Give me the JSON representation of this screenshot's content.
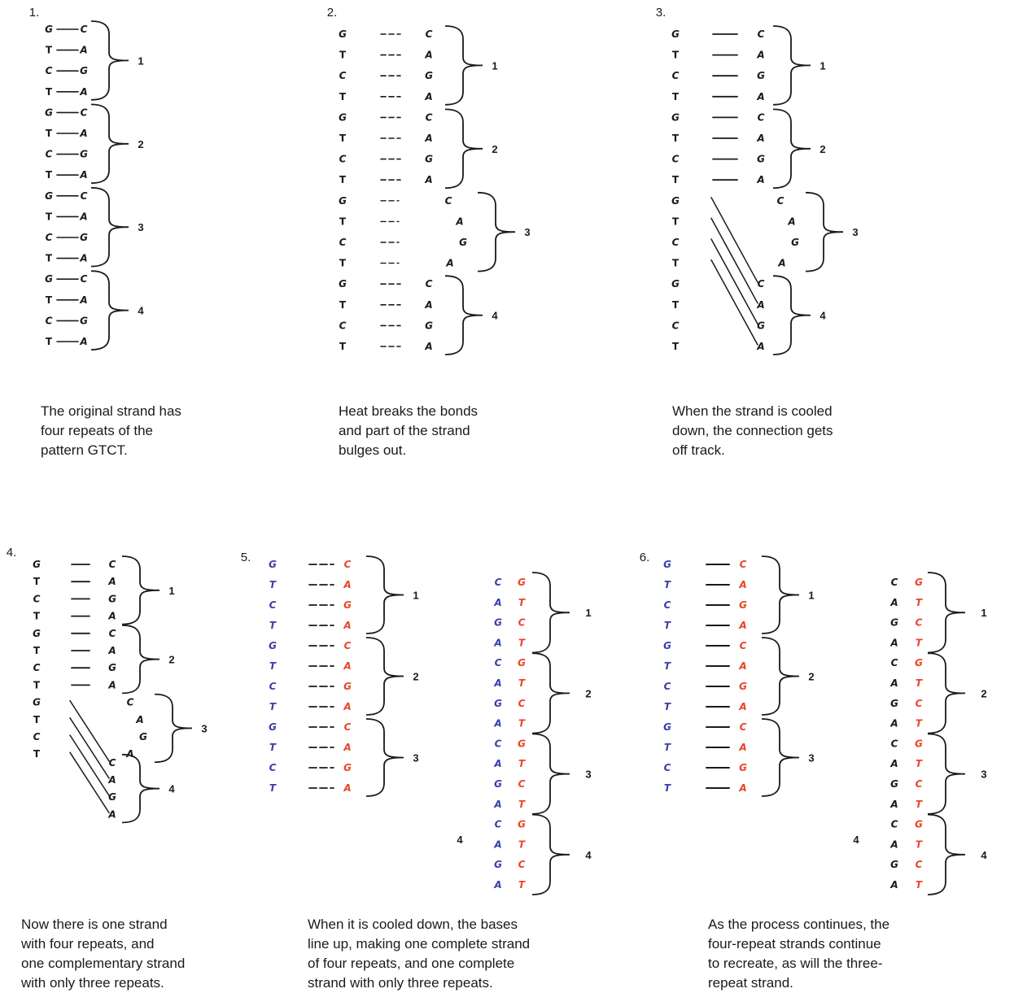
{
  "colors": {
    "ink": "#1a1a1a",
    "left_strand_blue": "#3a3fa8",
    "right_strand_red": "#e8462a"
  },
  "panels": [
    {
      "number": "1.",
      "left": [
        "G",
        "T",
        "C",
        "T",
        "G",
        "T",
        "C",
        "T",
        "G",
        "T",
        "C",
        "T",
        "G",
        "T",
        "C",
        "T"
      ],
      "right": [
        "C",
        "A",
        "G",
        "A",
        "C",
        "A",
        "G",
        "A",
        "C",
        "A",
        "G",
        "A",
        "C",
        "A",
        "G",
        "A"
      ],
      "repeat_labels": [
        "1",
        "2",
        "3",
        "4"
      ],
      "caption": "The original strand has\nfour repeats of the\npattern GTCT."
    },
    {
      "number": "2.",
      "left": [
        "G",
        "T",
        "C",
        "T",
        "G",
        "T",
        "C",
        "T",
        "G",
        "T",
        "C",
        "T",
        "G",
        "T",
        "C",
        "T"
      ],
      "right": [
        "C",
        "A",
        "G",
        "A",
        "C",
        "A",
        "G",
        "A",
        "C",
        "A",
        "G",
        "A",
        "C",
        "A",
        "G",
        "A"
      ],
      "repeat_labels": [
        "1",
        "2",
        "3",
        "4"
      ],
      "caption": "Heat breaks the bonds\nand part of the strand\nbulges out."
    },
    {
      "number": "3.",
      "left": [
        "G",
        "T",
        "C",
        "T",
        "G",
        "T",
        "C",
        "T",
        "G",
        "T",
        "C",
        "T",
        "G",
        "T",
        "C",
        "T"
      ],
      "right": [
        "C",
        "A",
        "G",
        "A",
        "C",
        "A",
        "G",
        "A",
        "C",
        "A",
        "G",
        "A",
        "C",
        "A",
        "G",
        "A"
      ],
      "repeat_labels": [
        "1",
        "2",
        "3",
        "4"
      ],
      "caption": "When the strand is cooled\ndown, the connection gets\noff track."
    },
    {
      "number": "4.",
      "left": [
        "G",
        "T",
        "C",
        "T",
        "G",
        "T",
        "C",
        "T",
        "G",
        "T",
        "C",
        "T"
      ],
      "right": [
        "C",
        "A",
        "G",
        "A",
        "C",
        "A",
        "G",
        "A",
        "C",
        "A",
        "G",
        "A",
        "C",
        "A",
        "G",
        "A"
      ],
      "repeat_labels": [
        "1",
        "2",
        "3",
        "4"
      ],
      "caption": "Now there is one strand\nwith four repeats, and\none complementary strand\nwith only three repeats."
    },
    {
      "number": "5.",
      "left": [
        "G",
        "T",
        "C",
        "T",
        "G",
        "T",
        "C",
        "T",
        "G",
        "T",
        "C",
        "T"
      ],
      "right": [
        "C",
        "A",
        "G",
        "A",
        "C",
        "A",
        "G",
        "A",
        "C",
        "A",
        "G",
        "A"
      ],
      "repeat_labels": [
        "1",
        "2",
        "3"
      ],
      "second_left": [
        "C",
        "A",
        "G",
        "A",
        "C",
        "A",
        "G",
        "A",
        "C",
        "A",
        "G",
        "A",
        "C",
        "A",
        "G",
        "A"
      ],
      "second_right": [
        "G",
        "T",
        "C",
        "T",
        "G",
        "T",
        "C",
        "T",
        "G",
        "T",
        "C",
        "T",
        "G",
        "T",
        "C",
        "T"
      ],
      "second_repeat_labels": [
        "1",
        "2",
        "3",
        "4"
      ],
      "side_label": "4",
      "caption": "When it is cooled down, the bases\nline up, making one complete strand\nof four repeats, and one complete\nstrand with only three repeats."
    },
    {
      "number": "6.",
      "left": [
        "G",
        "T",
        "C",
        "T",
        "G",
        "T",
        "C",
        "T",
        "G",
        "T",
        "C",
        "T"
      ],
      "right": [
        "C",
        "A",
        "G",
        "A",
        "C",
        "A",
        "G",
        "A",
        "C",
        "A",
        "G",
        "A"
      ],
      "repeat_labels": [
        "1",
        "2",
        "3"
      ],
      "second_left": [
        "C",
        "A",
        "G",
        "A",
        "C",
        "A",
        "G",
        "A",
        "C",
        "A",
        "G",
        "A",
        "C",
        "A",
        "G",
        "A"
      ],
      "second_right": [
        "G",
        "T",
        "C",
        "T",
        "G",
        "T",
        "C",
        "T",
        "G",
        "T",
        "C",
        "T",
        "G",
        "T",
        "C",
        "T"
      ],
      "second_repeat_labels": [
        "1",
        "2",
        "3",
        "4"
      ],
      "side_label": "4",
      "caption": "As the process continues, the\nfour-repeat strands continue\nto recreate, as will the three-\nrepeat strand."
    }
  ]
}
